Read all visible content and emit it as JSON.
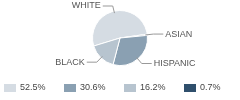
{
  "chart_data": {
    "type": "pie",
    "categories": [
      "WHITE",
      "ASIAN",
      "HISPANIC",
      "BLACK"
    ],
    "values": [
      52.5,
      0.7,
      30.6,
      16.2
    ],
    "value_labels": [
      "52.5%",
      "0.7%",
      "30.6%",
      "16.2%"
    ],
    "colors": [
      "#d5dce3",
      "#2f4f6c",
      "#8aa0b2",
      "#b7c4cf"
    ],
    "legend": "bottom"
  }
}
